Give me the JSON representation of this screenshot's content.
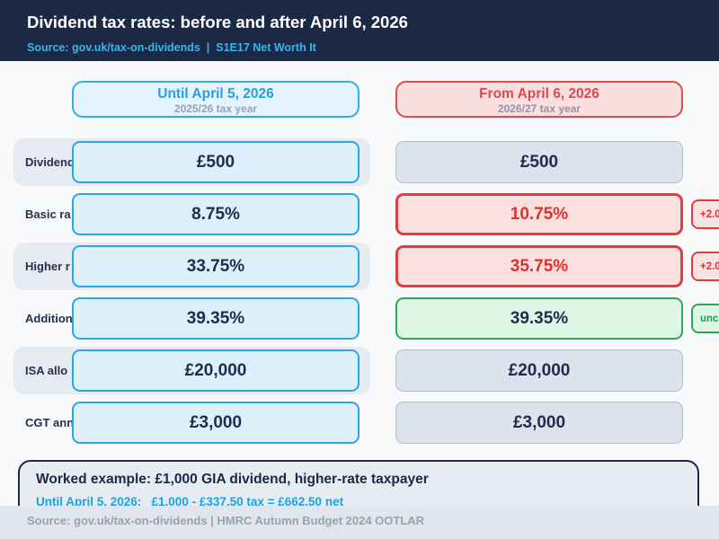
{
  "header": {
    "title": "Dividend tax rates: before and after April 6, 2026",
    "source": "Source: gov.uk/tax-on-dividends  |  S1E17 Net Worth It"
  },
  "columns": {
    "before": {
      "title": "Until April 5, 2026",
      "subtitle": "2025/26 tax year"
    },
    "after": {
      "title": "From April 6, 2026",
      "subtitle": "2026/27 tax year"
    }
  },
  "rows": [
    {
      "label": "Dividend",
      "before": "£500",
      "after": "£500",
      "change": "same"
    },
    {
      "label": "Basic ra",
      "before": "8.75%",
      "after": "10.75%",
      "change": "up",
      "badge": "+2.0"
    },
    {
      "label": "Higher r",
      "before": "33.75%",
      "after": "35.75%",
      "change": "up",
      "badge": "+2.0"
    },
    {
      "label": "Addition",
      "before": "39.35%",
      "after": "39.35%",
      "change": "unchanged",
      "badge": "unc"
    },
    {
      "label": "ISA allo",
      "before": "£20,000",
      "after": "£20,000",
      "change": "same"
    },
    {
      "label": "CGT ann",
      "before": "£3,000",
      "after": "£3,000",
      "change": "same"
    }
  ],
  "worked_example": {
    "title": "Worked example: £1,000 GIA dividend, higher-rate taxpayer",
    "line1": "Until April 5, 2026:   £1,000 - £337.50 tax = £662.50 net"
  },
  "footer": {
    "source": "Source: gov.uk/tax-on-dividends | HMRC Autumn Budget 2024 OOTLAR"
  },
  "colors": {
    "header_bg": "#1b2946",
    "accent_blue": "#2aa7e1",
    "accent_red": "#e23d3d",
    "accent_green": "#2ba955",
    "navy_text": "#1f2c4e",
    "link_blue": "#3db3e8",
    "footer_bg": "#e0e5ee"
  },
  "chart_data": {
    "type": "table",
    "title": "Dividend tax rates: before and after April 6, 2026",
    "categories": [
      "Dividend",
      "Basic ra",
      "Higher r",
      "Addition",
      "ISA allo",
      "CGT ann"
    ],
    "series": [
      {
        "name": "Until April 5, 2026 (2025/26 tax year)",
        "values": [
          "£500",
          "8.75%",
          "33.75%",
          "39.35%",
          "£20,000",
          "£3,000"
        ]
      },
      {
        "name": "From April 6, 2026 (2026/27 tax year)",
        "values": [
          "£500",
          "10.75%",
          "35.75%",
          "39.35%",
          "£20,000",
          "£3,000"
        ]
      }
    ],
    "annotations": [
      "+2.0",
      "+2.0",
      "unc"
    ],
    "legend_position": "top"
  }
}
